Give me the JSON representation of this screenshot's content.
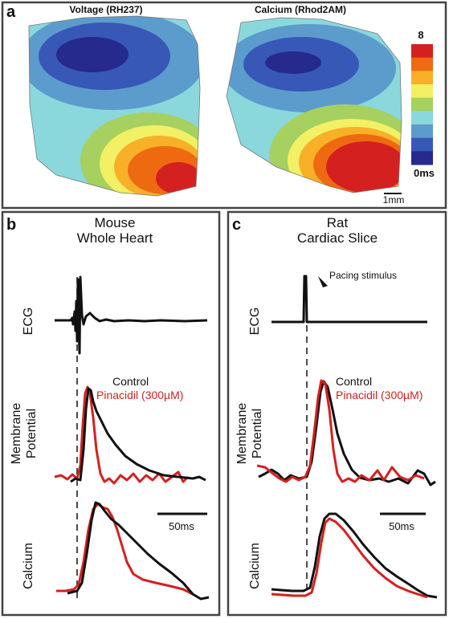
{
  "panel_a": {
    "letter": "a",
    "map_titles": [
      "Voltage (RH237)",
      "Calcium (Rhod2AM)"
    ],
    "colorbar": {
      "max_label": "8",
      "min_label": "0ms",
      "colors": [
        "#d52020",
        "#ee6a10",
        "#f8b028",
        "#f2f064",
        "#a6d060",
        "#8ad8dc",
        "#5c9ccc",
        "#3858b8",
        "#262a8c"
      ]
    },
    "scalebar_label": "1mm"
  },
  "panel_b": {
    "letter": "b",
    "heading_line1": "Mouse",
    "heading_line2": "Whole Heart",
    "ecg_label": "ECG",
    "vm_label_line1": "Membrane",
    "vm_label_line2": "Potential",
    "ca_label": "Calcium",
    "legend_control": "Control",
    "legend_drug": "Pinacidil (300µM)",
    "time_scale": "50ms"
  },
  "panel_c": {
    "letter": "c",
    "heading_line1": "Rat",
    "heading_line2": "Cardiac Slice",
    "pacing_label": "Pacing stimulus",
    "ecg_label": "ECG",
    "vm_label_line1": "Membrane",
    "vm_label_line2": "Potential",
    "ca_label": "Calcium",
    "legend_control": "Control",
    "legend_drug": "Pinacidil (300µM)",
    "time_scale": "50ms"
  },
  "colors": {
    "control": "#111111",
    "drug": "#d42020",
    "frame": "#444444"
  }
}
